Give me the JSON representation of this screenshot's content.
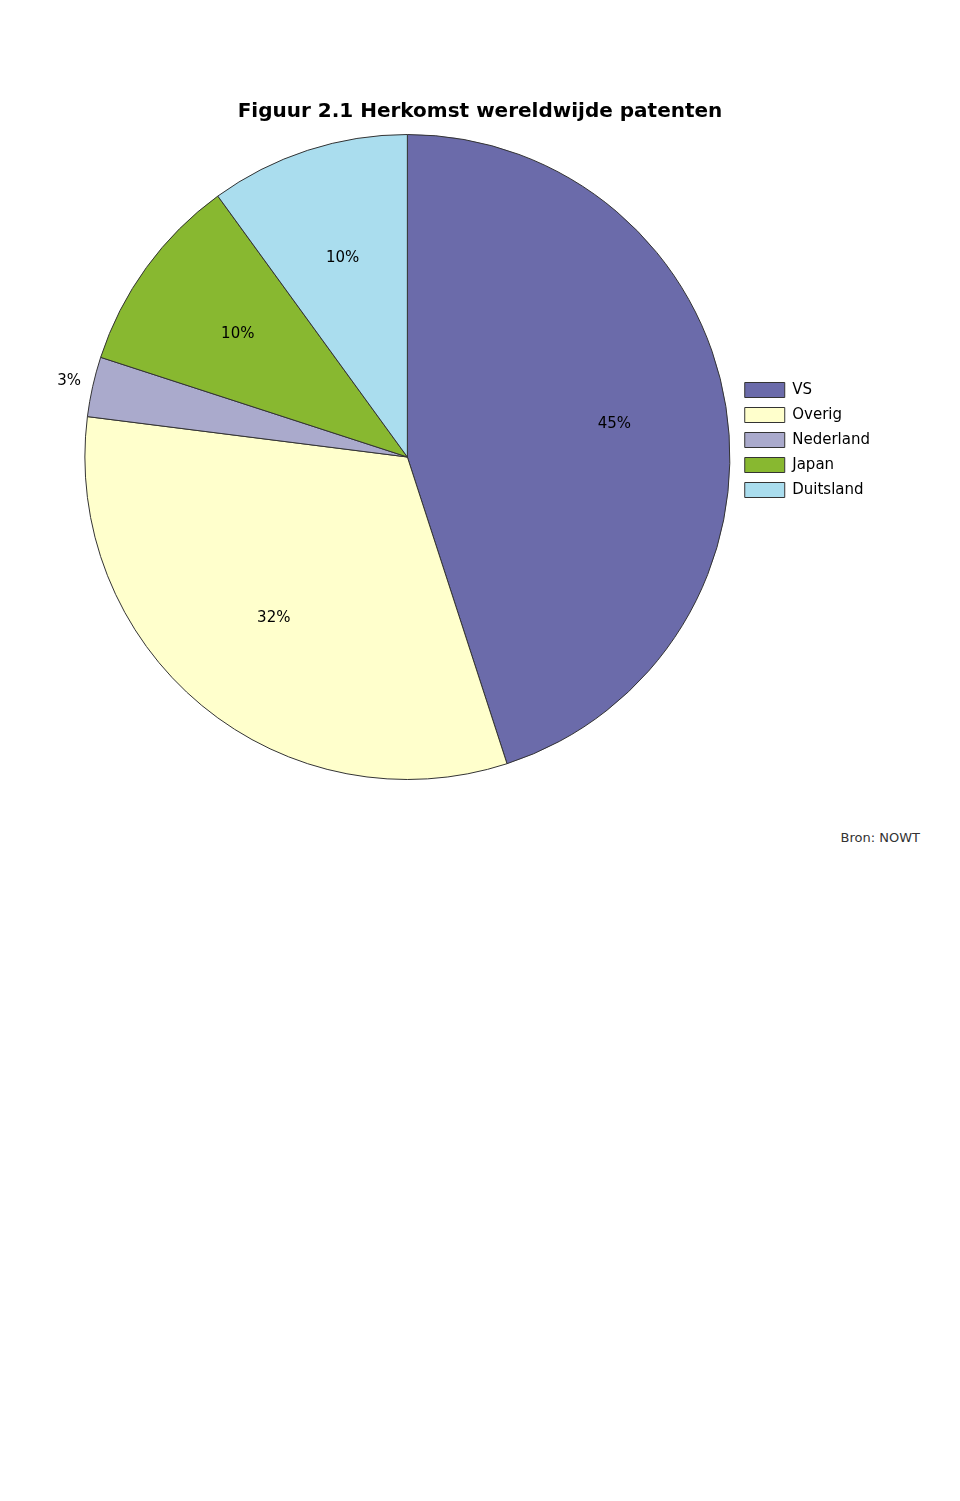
{
  "chart_data": {
    "type": "pie",
    "title": "Figuur 2.1 Herkomst wereldwijde patenten",
    "categories": [
      "VS",
      "Overig",
      "Nederland",
      "Japan",
      "Duitsland"
    ],
    "values": [
      45,
      32,
      3,
      10,
      10
    ],
    "value_labels": [
      "45%",
      "32%",
      "3%",
      "10%",
      "10%"
    ],
    "colors": [
      "#6b6baa",
      "#ffffcc",
      "#aaaacc",
      "#88b830",
      "#aaddee"
    ],
    "data_labels": true,
    "legend": "right",
    "annotations": [
      "Bron: NOWT"
    ]
  }
}
